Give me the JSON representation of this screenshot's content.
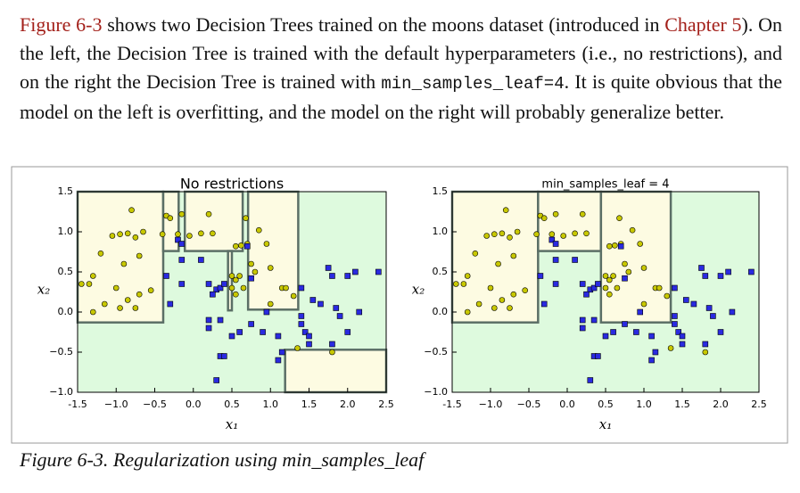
{
  "paragraph": [
    "Figure 6-3",
    " shows two Decision Trees trained on the moons dataset (introduced in ",
    "Chapter 5",
    "). On the left, the Decision Tree is trained with the default hyperparameters (i.e., no restrictions), and on the right the Decision Tree is trained with ",
    "min_samples_leaf=4",
    ". It is quite obvious that the model on the left is overfitting, and the model on the right will probably generalize better."
  ],
  "caption": "Figure 6-3. Regularization using min_samples_leaf",
  "chart_data": [
    {
      "type": "scatter",
      "title": "No restrictions",
      "x_label": "x₁",
      "y_label": "x₂",
      "background": "#defade",
      "xlim": [
        -1.5,
        2.5
      ],
      "ylim": [
        -1.0,
        1.5
      ],
      "xticks": [
        -1.5,
        {
          "value": -1.0,
          "label": "−1.0"
        },
        {
          "value": -0.5,
          "label": "−0.5"
        },
        {
          "value": 0.0,
          "label": "0.0"
        },
        0.5,
        {
          "value": 1.0,
          "label": "1.0"
        },
        1.5,
        {
          "value": 2.0,
          "label": "2.0"
        },
        2.5
      ],
      "yticks": [
        {
          "value": -1.0,
          "label": "−1.0"
        },
        {
          "value": -0.5,
          "label": "−0.5"
        },
        {
          "value": 0.0,
          "label": "0.0"
        },
        0.5,
        {
          "value": 1.0,
          "label": "1.0"
        },
        1.5
      ],
      "regions": [
        {
          "color": "#fdfbe2",
          "xlim": [
            -1.5,
            -0.39
          ],
          "ylim": [
            -0.13,
            1.5
          ]
        },
        {
          "color": "#fdfbe2",
          "xlim": [
            -0.39,
            -0.19
          ],
          "ylim": [
            0.76,
            1.5
          ]
        },
        {
          "color": "#fdfbe2",
          "xlim": [
            -0.11,
            0.64
          ],
          "ylim": [
            0.76,
            1.5
          ]
        },
        {
          "color": "#fdfbe2",
          "xlim": [
            0.45,
            0.5
          ],
          "ylim": [
            0.02,
            0.76
          ]
        },
        {
          "color": "#fdfbe2",
          "xlim": [
            0.71,
            1.36
          ],
          "ylim": [
            0.03,
            1.5
          ]
        },
        {
          "color": "#fdfbe2",
          "xlim": [
            1.19,
            2.5
          ],
          "ylim": [
            -1.0,
            -0.47
          ]
        }
      ],
      "series": [
        {
          "color": "#c8c800",
          "marker": "circle",
          "x": [
            -0.8,
            -0.35,
            -0.3,
            -0.15,
            0.2,
            0.68,
            -1.05,
            -0.95,
            -0.85,
            -0.75,
            -0.65,
            -0.4,
            -0.2,
            -0.05,
            0.1,
            0.25,
            0.55,
            0.62,
            0.7,
            0.85,
            0.95,
            -1.2,
            -0.7,
            -0.9,
            -1.3,
            -1.45,
            -1.35,
            -1.0,
            -0.85,
            -0.7,
            -0.55,
            -1.15,
            -0.95,
            -1.3,
            0.5,
            0.55,
            0.6,
            0.5,
            0.65,
            0.8,
            1.0,
            1.15,
            1.2,
            1.3,
            1.0,
            0.55,
            -0.75,
            1.35,
            1.8,
            0.75
          ],
          "values": [
            1.27,
            1.2,
            1.17,
            1.22,
            1.22,
            1.17,
            0.95,
            0.97,
            0.98,
            0.93,
            1.0,
            0.97,
            0.97,
            0.95,
            0.98,
            0.98,
            0.82,
            0.83,
            0.85,
            1.02,
            0.85,
            0.73,
            0.7,
            0.6,
            0.45,
            0.35,
            0.35,
            0.3,
            0.15,
            0.22,
            0.27,
            0.1,
            0.05,
            0.0,
            0.45,
            0.4,
            0.45,
            0.3,
            0.3,
            0.5,
            0.55,
            0.3,
            0.3,
            0.2,
            0.1,
            0.22,
            0.05,
            -0.45,
            -0.5,
            0.6
          ]
        },
        {
          "color": "#2a2ae0",
          "marker": "square",
          "x": [
            -0.2,
            -0.15,
            0.7,
            -0.15,
            0.1,
            -0.35,
            -0.15,
            0.2,
            0.3,
            0.35,
            0.4,
            0.25,
            0.75,
            -0.3,
            0.2,
            0.35,
            0.2,
            0.5,
            0.6,
            0.75,
            0.9,
            1.1,
            1.4,
            1.4,
            1.45,
            1.5,
            1.5,
            1.85,
            1.9,
            2.15,
            1.8,
            1.75,
            1.8,
            2.0,
            2.1,
            2.4,
            1.4,
            2.0,
            0.35,
            0.4,
            1.1,
            1.15,
            0.3,
            1.55,
            1.65,
            0.95
          ],
          "values": [
            0.9,
            0.85,
            0.82,
            0.65,
            0.65,
            0.45,
            0.35,
            0.35,
            0.28,
            0.3,
            0.35,
            0.22,
            0.42,
            0.1,
            -0.1,
            -0.1,
            -0.2,
            -0.3,
            -0.25,
            -0.15,
            -0.25,
            -0.3,
            -0.05,
            -0.15,
            -0.25,
            -0.3,
            -0.4,
            0.05,
            -0.05,
            0.0,
            -0.4,
            0.55,
            0.45,
            0.45,
            0.5,
            0.5,
            0.3,
            -0.25,
            -0.55,
            -0.55,
            -0.6,
            -0.5,
            -0.85,
            0.15,
            0.1,
            0.0
          ]
        }
      ]
    },
    {
      "type": "scatter",
      "title": "min_samples_leaf = 4",
      "x_label": "x₁",
      "y_label": "x₂",
      "background": "#defade",
      "xlim": [
        -1.5,
        2.5
      ],
      "ylim": [
        -1.0,
        1.5
      ],
      "xticks": [
        -1.5,
        {
          "value": -1.0,
          "label": "−1.0"
        },
        {
          "value": -0.5,
          "label": "−0.5"
        },
        {
          "value": 0.0,
          "label": "0.0"
        },
        0.5,
        {
          "value": 1.0,
          "label": "1.0"
        },
        1.5,
        {
          "value": 2.0,
          "label": "2.0"
        },
        2.5
      ],
      "yticks": [
        {
          "value": -1.0,
          "label": "−1.0"
        },
        {
          "value": -0.5,
          "label": "−0.5"
        },
        {
          "value": 0.0,
          "label": "0.0"
        },
        0.5,
        {
          "value": 1.0,
          "label": "1.0"
        },
        1.5
      ],
      "regions": [
        {
          "color": "#fdfbe2",
          "xlim": [
            -1.5,
            -0.38
          ],
          "ylim": [
            -0.13,
            1.5
          ]
        },
        {
          "color": "#fdfbe2",
          "xlim": [
            -0.38,
            0.44
          ],
          "ylim": [
            0.76,
            1.5
          ]
        },
        {
          "color": "#fdfbe2",
          "xlim": [
            0.44,
            1.35
          ],
          "ylim": [
            -0.13,
            1.5
          ]
        }
      ],
      "series": [
        {
          "color": "#c8c800",
          "marker": "circle",
          "x": [
            -0.8,
            -0.35,
            -0.3,
            -0.15,
            0.2,
            0.68,
            -1.05,
            -0.95,
            -0.85,
            -0.75,
            -0.65,
            -0.4,
            -0.2,
            -0.05,
            0.1,
            0.25,
            0.55,
            0.62,
            0.7,
            0.85,
            0.95,
            -1.2,
            -0.7,
            -0.9,
            -1.3,
            -1.45,
            -1.35,
            -1.0,
            -0.85,
            -0.7,
            -0.55,
            -1.15,
            -0.95,
            -1.3,
            0.5,
            0.55,
            0.6,
            0.5,
            0.65,
            0.8,
            1.0,
            1.15,
            1.2,
            1.3,
            1.0,
            0.55,
            -0.75,
            1.35,
            1.8,
            0.75
          ],
          "values": [
            1.27,
            1.2,
            1.17,
            1.22,
            1.22,
            1.17,
            0.95,
            0.97,
            0.98,
            0.93,
            1.0,
            0.97,
            0.97,
            0.95,
            0.98,
            0.98,
            0.82,
            0.83,
            0.85,
            1.02,
            0.85,
            0.73,
            0.7,
            0.6,
            0.45,
            0.35,
            0.35,
            0.3,
            0.15,
            0.22,
            0.27,
            0.1,
            0.05,
            0.0,
            0.45,
            0.4,
            0.45,
            0.3,
            0.3,
            0.5,
            0.55,
            0.3,
            0.3,
            0.2,
            0.1,
            0.22,
            0.05,
            -0.45,
            -0.5,
            0.6
          ]
        },
        {
          "color": "#2a2ae0",
          "marker": "square",
          "x": [
            -0.2,
            -0.15,
            0.7,
            -0.15,
            0.1,
            -0.35,
            -0.15,
            0.2,
            0.3,
            0.35,
            0.4,
            0.25,
            0.75,
            -0.3,
            0.2,
            0.35,
            0.2,
            0.5,
            0.6,
            0.75,
            0.9,
            1.1,
            1.4,
            1.4,
            1.45,
            1.5,
            1.5,
            1.85,
            1.9,
            2.15,
            1.8,
            1.75,
            1.8,
            2.0,
            2.1,
            2.4,
            1.4,
            2.0,
            0.35,
            0.4,
            1.1,
            1.15,
            0.3,
            1.55,
            1.65,
            0.95
          ],
          "values": [
            0.9,
            0.85,
            0.82,
            0.65,
            0.65,
            0.45,
            0.35,
            0.35,
            0.28,
            0.3,
            0.35,
            0.22,
            0.42,
            0.1,
            -0.1,
            -0.1,
            -0.2,
            -0.3,
            -0.25,
            -0.15,
            -0.25,
            -0.3,
            -0.05,
            -0.15,
            -0.25,
            -0.3,
            -0.4,
            0.05,
            -0.05,
            0.0,
            -0.4,
            0.55,
            0.45,
            0.45,
            0.5,
            0.5,
            0.3,
            -0.25,
            -0.55,
            -0.55,
            -0.6,
            -0.5,
            -0.85,
            0.15,
            0.1,
            0.0
          ]
        }
      ]
    }
  ]
}
